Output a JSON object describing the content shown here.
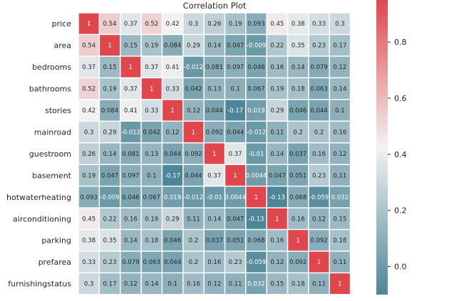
{
  "chart_data": {
    "type": "heatmap",
    "title": "Correlation Plot",
    "variables": [
      "price",
      "area",
      "bedrooms",
      "bathrooms",
      "stories",
      "mainroad",
      "guestroom",
      "basement",
      "hotwaterheating",
      "airconditioning",
      "parking",
      "prefarea",
      "furnishingstatus"
    ],
    "labels": [
      [
        "1",
        "0.54",
        "0.37",
        "0.52",
        "0.42",
        "0.3",
        "0.26",
        "0.19",
        "0.093",
        "0.45",
        "0.38",
        "0.33",
        "0.3"
      ],
      [
        "0.54",
        "1",
        "0.15",
        "0.19",
        "0.084",
        "0.29",
        "0.14",
        "0.047",
        "-0.009",
        "0.22",
        "0.35",
        "0.23",
        "0.17"
      ],
      [
        "0.37",
        "0.15",
        "1",
        "0.37",
        "0.41",
        "-0.012",
        "0.081",
        "0.097",
        "0.046",
        "0.16",
        "0.14",
        "0.079",
        "0.12"
      ],
      [
        "0.52",
        "0.19",
        "0.37",
        "1",
        "0.33",
        "0.042",
        "0.13",
        "0.1",
        "0.067",
        "0.19",
        "0.18",
        "0.063",
        "0.14"
      ],
      [
        "0.42",
        "0.084",
        "0.41",
        "0.33",
        "1",
        "0.12",
        "0.044",
        "-0.17",
        "0.019",
        "0.29",
        "0.046",
        "0.044",
        "0.1"
      ],
      [
        "0.3",
        "0.29",
        "-0.012",
        "0.042",
        "0.12",
        "1",
        "0.092",
        "0.044",
        "-0.012",
        "0.11",
        "0.2",
        "0.2",
        "0.16"
      ],
      [
        "0.26",
        "0.14",
        "0.081",
        "0.13",
        "0.044",
        "0.092",
        "1",
        "0.37",
        "-0.01",
        "0.14",
        "0.037",
        "0.16",
        "0.12"
      ],
      [
        "0.19",
        "0.047",
        "0.097",
        "0.1",
        "-0.17",
        "0.044",
        "0.37",
        "1",
        "0.0044",
        "0.047",
        "0.051",
        "0.23",
        "0.11"
      ],
      [
        "0.093",
        "-0.009",
        "0.046",
        "0.067",
        "0.019",
        "-0.012",
        "-0.01",
        "0.0044",
        "1",
        "-0.13",
        "0.068",
        "-0.059",
        "0.032"
      ],
      [
        "0.45",
        "0.22",
        "0.16",
        "0.19",
        "0.29",
        "0.11",
        "0.14",
        "0.047",
        "-0.13",
        "1",
        "0.16",
        "0.12",
        "0.15"
      ],
      [
        "0.38",
        "0.35",
        "0.14",
        "0.18",
        "0.046",
        "0.2",
        "0.037",
        "0.051",
        "0.068",
        "0.16",
        "1",
        "0.092",
        "0.18"
      ],
      [
        "0.33",
        "0.23",
        "0.079",
        "0.063",
        "0.044",
        "0.2",
        "0.16",
        "0.23",
        "-0.059",
        "0.12",
        "0.092",
        "1",
        "0.11"
      ],
      [
        "0.3",
        "0.17",
        "0.12",
        "0.14",
        "0.1",
        "0.16",
        "0.12",
        "0.11",
        "0.032",
        "0.15",
        "0.18",
        "0.11",
        "1"
      ]
    ],
    "colorbar": {
      "range": [
        -0.1,
        0.95
      ],
      "ticks": [
        "0.0",
        "0.2",
        "0.4",
        "0.6",
        "0.8"
      ],
      "tick_values": [
        0,
        0.2,
        0.4,
        0.6,
        0.8
      ],
      "low_color": "#4d8698",
      "mid_color": "#f2f2f2",
      "high_color": "#e0474c"
    },
    "grid": false
  }
}
